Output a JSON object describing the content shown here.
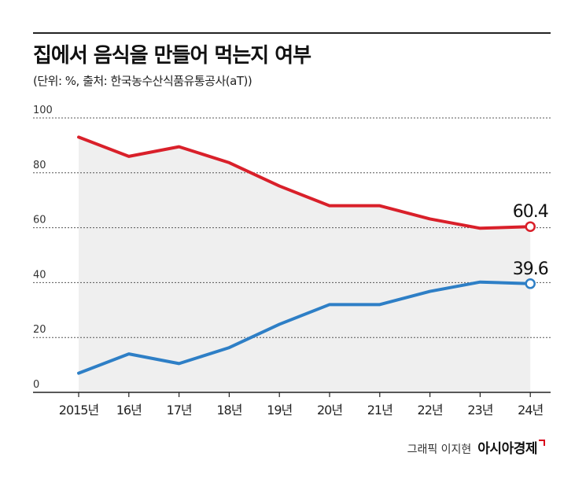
{
  "header": {
    "title": "집에서 음식을 만들어 먹는지 여부",
    "subtitle": "(단위: %, 출처: 한국농수산식품유통공사(aT))"
  },
  "chart_data": {
    "type": "line",
    "categories": [
      "2015년",
      "16년",
      "17년",
      "18년",
      "19년",
      "20년",
      "21년",
      "22년",
      "23년",
      "24년"
    ],
    "series": [
      {
        "color": "#d9202a",
        "values": [
          93.0,
          86.0,
          89.5,
          83.7,
          75.2,
          68.0,
          68.0,
          63.2,
          59.8,
          60.4
        ],
        "end_label": "60.4"
      },
      {
        "color": "#2e7fc6",
        "values": [
          7.0,
          14.0,
          10.5,
          16.3,
          24.8,
          32.0,
          32.0,
          36.8,
          40.2,
          39.6
        ],
        "end_label": "39.6"
      }
    ],
    "yticks": [
      "0",
      "20",
      "40",
      "60",
      "80",
      "100"
    ],
    "ylim": [
      0,
      100
    ],
    "grid": true,
    "area_fill": "#efefef",
    "legend": "none"
  },
  "credit": {
    "text": "그래픽 이지현",
    "brand": "아시아경제"
  }
}
